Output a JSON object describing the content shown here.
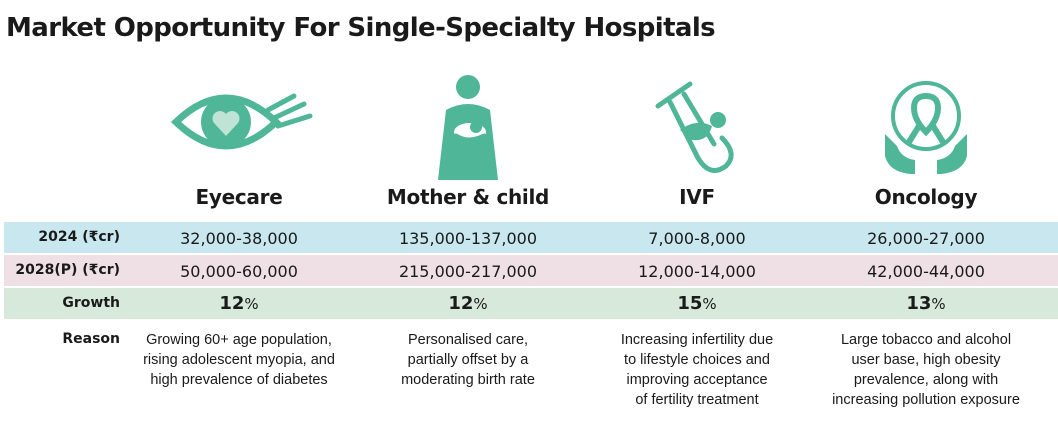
{
  "title": "Market Opportunity For Single-Specialty Hospitals",
  "colors": {
    "icon": "#4fb698",
    "band_2024": "#c8e7ee",
    "band_2028": "#eee0e4",
    "band_growth": "#d6e9da"
  },
  "chart_data": {
    "type": "table",
    "title": "Market Opportunity For Single-Specialty Hospitals",
    "columns": [
      {
        "name": "Eyecare",
        "icon": "eye-icon"
      },
      {
        "name": "Mother & child",
        "icon": "mother-child-icon"
      },
      {
        "name": "IVF",
        "icon": "ivf-icon"
      },
      {
        "name": "Oncology",
        "icon": "oncology-ribbon-icon"
      }
    ],
    "row_labels": {
      "y2024": "2024 (₹cr)",
      "y2028": "2028(P) (₹cr)",
      "growth": "Growth",
      "reason": "Reason"
    },
    "y2024": [
      "32,000-38,000",
      "135,000-137,000",
      "7,000-8,000",
      "26,000-27,000"
    ],
    "y2028": [
      "50,000-60,000",
      "215,000-217,000",
      "12,000-14,000",
      "42,000-44,000"
    ],
    "growth": [
      {
        "value": "12",
        "unit": "%"
      },
      {
        "value": "12",
        "unit": "%"
      },
      {
        "value": "15",
        "unit": "%"
      },
      {
        "value": "13",
        "unit": "%"
      }
    ],
    "reasons": [
      [
        "Growing 60+ age population,",
        "rising adolescent myopia, and",
        "high prevalence of diabetes"
      ],
      [
        "Personalised care,",
        "partially offset by a",
        "moderating birth rate"
      ],
      [
        "Increasing infertility due",
        "to lifestyle choices and",
        "improving acceptance",
        "of fertility treatment"
      ],
      [
        "Large tobacco and alcohol",
        "user base, high obesity",
        "prevalence, along with",
        "increasing pollution exposure"
      ]
    ]
  }
}
